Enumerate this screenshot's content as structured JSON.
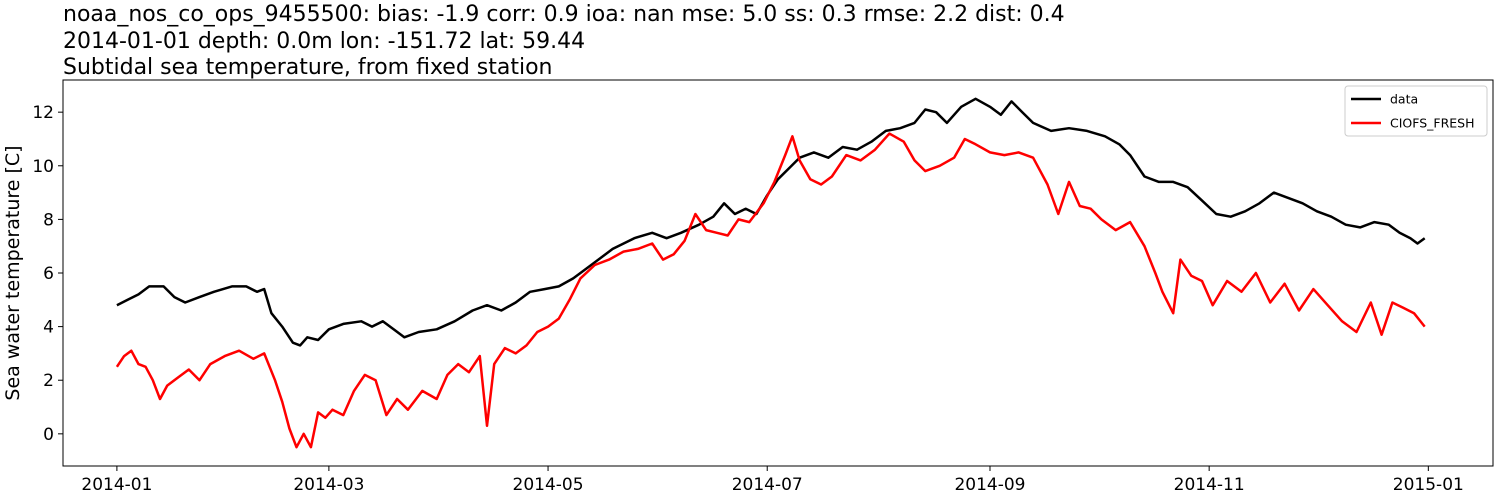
{
  "chart_data": {
    "type": "line",
    "title": [
      "noaa_nos_co_ops_9455500: bias: -1.9  corr: 0.9  ioa: nan  mse: 5.0  ss: 0.3  rmse: 2.2  dist: 0.4",
      "2014-01-01 depth: 0.0m lon: -151.72 lat: 59.44",
      "Subtidal sea temperature, from fixed station"
    ],
    "xlabel": "",
    "ylabel": "Sea water temperature [C]",
    "xlim": [
      "2013-12-17",
      "2015-01-19"
    ],
    "ylim": [
      -1.2,
      13.2
    ],
    "x_ticks": [
      "2014-01",
      "2014-03",
      "2014-05",
      "2014-07",
      "2014-09",
      "2014-11",
      "2015-01"
    ],
    "y_ticks": [
      0,
      2,
      4,
      6,
      8,
      10,
      12
    ],
    "grid": false,
    "legend_position": "top-right",
    "series": [
      {
        "name": "data",
        "color": "#000000",
        "points": [
          [
            "2014-01-01",
            4.8
          ],
          [
            "2014-01-04",
            5.0
          ],
          [
            "2014-01-07",
            5.2
          ],
          [
            "2014-01-10",
            5.5
          ],
          [
            "2014-01-14",
            5.5
          ],
          [
            "2014-01-17",
            5.1
          ],
          [
            "2014-01-20",
            4.9
          ],
          [
            "2014-01-24",
            5.1
          ],
          [
            "2014-01-28",
            5.3
          ],
          [
            "2014-02-02",
            5.5
          ],
          [
            "2014-02-06",
            5.5
          ],
          [
            "2014-02-09",
            5.3
          ],
          [
            "2014-02-11",
            5.4
          ],
          [
            "2014-02-13",
            4.5
          ],
          [
            "2014-02-16",
            4.0
          ],
          [
            "2014-02-19",
            3.4
          ],
          [
            "2014-02-21",
            3.3
          ],
          [
            "2014-02-23",
            3.6
          ],
          [
            "2014-02-26",
            3.5
          ],
          [
            "2014-03-01",
            3.9
          ],
          [
            "2014-03-05",
            4.1
          ],
          [
            "2014-03-10",
            4.2
          ],
          [
            "2014-03-13",
            4.0
          ],
          [
            "2014-03-16",
            4.2
          ],
          [
            "2014-03-19",
            3.9
          ],
          [
            "2014-03-22",
            3.6
          ],
          [
            "2014-03-26",
            3.8
          ],
          [
            "2014-03-31",
            3.9
          ],
          [
            "2014-04-05",
            4.2
          ],
          [
            "2014-04-10",
            4.6
          ],
          [
            "2014-04-14",
            4.8
          ],
          [
            "2014-04-18",
            4.6
          ],
          [
            "2014-04-22",
            4.9
          ],
          [
            "2014-04-26",
            5.3
          ],
          [
            "2014-04-30",
            5.4
          ],
          [
            "2014-05-04",
            5.5
          ],
          [
            "2014-05-08",
            5.8
          ],
          [
            "2014-05-13",
            6.3
          ],
          [
            "2014-05-19",
            6.9
          ],
          [
            "2014-05-25",
            7.3
          ],
          [
            "2014-05-30",
            7.5
          ],
          [
            "2014-06-03",
            7.3
          ],
          [
            "2014-06-07",
            7.5
          ],
          [
            "2014-06-12",
            7.8
          ],
          [
            "2014-06-16",
            8.1
          ],
          [
            "2014-06-19",
            8.6
          ],
          [
            "2014-06-22",
            8.2
          ],
          [
            "2014-06-25",
            8.4
          ],
          [
            "2014-06-28",
            8.2
          ],
          [
            "2014-07-01",
            8.9
          ],
          [
            "2014-07-04",
            9.5
          ],
          [
            "2014-07-07",
            9.9
          ],
          [
            "2014-07-10",
            10.3
          ],
          [
            "2014-07-14",
            10.5
          ],
          [
            "2014-07-18",
            10.3
          ],
          [
            "2014-07-22",
            10.7
          ],
          [
            "2014-07-26",
            10.6
          ],
          [
            "2014-07-30",
            10.9
          ],
          [
            "2014-08-03",
            11.3
          ],
          [
            "2014-08-07",
            11.4
          ],
          [
            "2014-08-11",
            11.6
          ],
          [
            "2014-08-14",
            12.1
          ],
          [
            "2014-08-17",
            12.0
          ],
          [
            "2014-08-20",
            11.6
          ],
          [
            "2014-08-24",
            12.2
          ],
          [
            "2014-08-28",
            12.5
          ],
          [
            "2014-09-01",
            12.2
          ],
          [
            "2014-09-04",
            11.9
          ],
          [
            "2014-09-07",
            12.4
          ],
          [
            "2014-09-10",
            12.0
          ],
          [
            "2014-09-13",
            11.6
          ],
          [
            "2014-09-18",
            11.3
          ],
          [
            "2014-09-23",
            11.4
          ],
          [
            "2014-09-28",
            11.3
          ],
          [
            "2014-10-03",
            11.1
          ],
          [
            "2014-10-07",
            10.8
          ],
          [
            "2014-10-10",
            10.4
          ],
          [
            "2014-10-14",
            9.6
          ],
          [
            "2014-10-18",
            9.4
          ],
          [
            "2014-10-22",
            9.4
          ],
          [
            "2014-10-26",
            9.2
          ],
          [
            "2014-10-30",
            8.7
          ],
          [
            "2014-11-03",
            8.2
          ],
          [
            "2014-11-07",
            8.1
          ],
          [
            "2014-11-11",
            8.3
          ],
          [
            "2014-11-15",
            8.6
          ],
          [
            "2014-11-19",
            9.0
          ],
          [
            "2014-11-23",
            8.8
          ],
          [
            "2014-11-27",
            8.6
          ],
          [
            "2014-12-01",
            8.3
          ],
          [
            "2014-12-05",
            8.1
          ],
          [
            "2014-12-09",
            7.8
          ],
          [
            "2014-12-13",
            7.7
          ],
          [
            "2014-12-17",
            7.9
          ],
          [
            "2014-12-21",
            7.8
          ],
          [
            "2014-12-24",
            7.5
          ],
          [
            "2014-12-27",
            7.3
          ],
          [
            "2014-12-29",
            7.1
          ],
          [
            "2014-12-31",
            7.3
          ]
        ]
      },
      {
        "name": "CIOFS_FRESH",
        "color": "#ff0000",
        "points": [
          [
            "2014-01-01",
            2.5
          ],
          [
            "2014-01-03",
            2.9
          ],
          [
            "2014-01-05",
            3.1
          ],
          [
            "2014-01-07",
            2.6
          ],
          [
            "2014-01-09",
            2.5
          ],
          [
            "2014-01-11",
            2.0
          ],
          [
            "2014-01-13",
            1.3
          ],
          [
            "2014-01-15",
            1.8
          ],
          [
            "2014-01-18",
            2.1
          ],
          [
            "2014-01-21",
            2.4
          ],
          [
            "2014-01-24",
            2.0
          ],
          [
            "2014-01-27",
            2.6
          ],
          [
            "2014-01-31",
            2.9
          ],
          [
            "2014-02-04",
            3.1
          ],
          [
            "2014-02-08",
            2.8
          ],
          [
            "2014-02-11",
            3.0
          ],
          [
            "2014-02-14",
            2.0
          ],
          [
            "2014-02-16",
            1.2
          ],
          [
            "2014-02-18",
            0.2
          ],
          [
            "2014-02-20",
            -0.5
          ],
          [
            "2014-02-22",
            0.0
          ],
          [
            "2014-02-24",
            -0.5
          ],
          [
            "2014-02-26",
            0.8
          ],
          [
            "2014-02-28",
            0.6
          ],
          [
            "2014-03-02",
            0.9
          ],
          [
            "2014-03-05",
            0.7
          ],
          [
            "2014-03-08",
            1.6
          ],
          [
            "2014-03-11",
            2.2
          ],
          [
            "2014-03-14",
            2.0
          ],
          [
            "2014-03-17",
            0.7
          ],
          [
            "2014-03-20",
            1.3
          ],
          [
            "2014-03-23",
            0.9
          ],
          [
            "2014-03-27",
            1.6
          ],
          [
            "2014-03-31",
            1.3
          ],
          [
            "2014-04-03",
            2.2
          ],
          [
            "2014-04-06",
            2.6
          ],
          [
            "2014-04-09",
            2.3
          ],
          [
            "2014-04-12",
            2.9
          ],
          [
            "2014-04-14",
            0.3
          ],
          [
            "2014-04-16",
            2.6
          ],
          [
            "2014-04-19",
            3.2
          ],
          [
            "2014-04-22",
            3.0
          ],
          [
            "2014-04-25",
            3.3
          ],
          [
            "2014-04-28",
            3.8
          ],
          [
            "2014-05-01",
            4.0
          ],
          [
            "2014-05-04",
            4.3
          ],
          [
            "2014-05-07",
            5.0
          ],
          [
            "2014-05-10",
            5.8
          ],
          [
            "2014-05-14",
            6.3
          ],
          [
            "2014-05-18",
            6.5
          ],
          [
            "2014-05-22",
            6.8
          ],
          [
            "2014-05-26",
            6.9
          ],
          [
            "2014-05-30",
            7.1
          ],
          [
            "2014-06-02",
            6.5
          ],
          [
            "2014-06-05",
            6.7
          ],
          [
            "2014-06-08",
            7.2
          ],
          [
            "2014-06-11",
            8.2
          ],
          [
            "2014-06-14",
            7.6
          ],
          [
            "2014-06-17",
            7.5
          ],
          [
            "2014-06-20",
            7.4
          ],
          [
            "2014-06-23",
            8.0
          ],
          [
            "2014-06-26",
            7.9
          ],
          [
            "2014-06-30",
            8.6
          ],
          [
            "2014-07-03",
            9.4
          ],
          [
            "2014-07-06",
            10.4
          ],
          [
            "2014-07-08",
            11.1
          ],
          [
            "2014-07-10",
            10.2
          ],
          [
            "2014-07-13",
            9.5
          ],
          [
            "2014-07-16",
            9.3
          ],
          [
            "2014-07-19",
            9.6
          ],
          [
            "2014-07-23",
            10.4
          ],
          [
            "2014-07-27",
            10.2
          ],
          [
            "2014-07-31",
            10.6
          ],
          [
            "2014-08-04",
            11.2
          ],
          [
            "2014-08-08",
            10.9
          ],
          [
            "2014-08-11",
            10.2
          ],
          [
            "2014-08-14",
            9.8
          ],
          [
            "2014-08-18",
            10.0
          ],
          [
            "2014-08-22",
            10.3
          ],
          [
            "2014-08-25",
            11.0
          ],
          [
            "2014-08-28",
            10.8
          ],
          [
            "2014-09-01",
            10.5
          ],
          [
            "2014-09-05",
            10.4
          ],
          [
            "2014-09-09",
            10.5
          ],
          [
            "2014-09-13",
            10.3
          ],
          [
            "2014-09-17",
            9.3
          ],
          [
            "2014-09-20",
            8.2
          ],
          [
            "2014-09-23",
            9.4
          ],
          [
            "2014-09-26",
            8.5
          ],
          [
            "2014-09-29",
            8.4
          ],
          [
            "2014-10-02",
            8.0
          ],
          [
            "2014-10-06",
            7.6
          ],
          [
            "2014-10-10",
            7.9
          ],
          [
            "2014-10-14",
            7.0
          ],
          [
            "2014-10-17",
            6.0
          ],
          [
            "2014-10-19",
            5.3
          ],
          [
            "2014-10-22",
            4.5
          ],
          [
            "2014-10-24",
            6.5
          ],
          [
            "2014-10-27",
            5.9
          ],
          [
            "2014-10-30",
            5.7
          ],
          [
            "2014-11-02",
            4.8
          ],
          [
            "2014-11-06",
            5.7
          ],
          [
            "2014-11-10",
            5.3
          ],
          [
            "2014-11-14",
            6.0
          ],
          [
            "2014-11-18",
            4.9
          ],
          [
            "2014-11-22",
            5.6
          ],
          [
            "2014-11-26",
            4.6
          ],
          [
            "2014-11-30",
            5.4
          ],
          [
            "2014-12-04",
            4.8
          ],
          [
            "2014-12-08",
            4.2
          ],
          [
            "2014-12-12",
            3.8
          ],
          [
            "2014-12-16",
            4.9
          ],
          [
            "2014-12-19",
            3.7
          ],
          [
            "2014-12-22",
            4.9
          ],
          [
            "2014-12-25",
            4.7
          ],
          [
            "2014-12-28",
            4.5
          ],
          [
            "2014-12-31",
            4.0
          ]
        ]
      }
    ]
  }
}
